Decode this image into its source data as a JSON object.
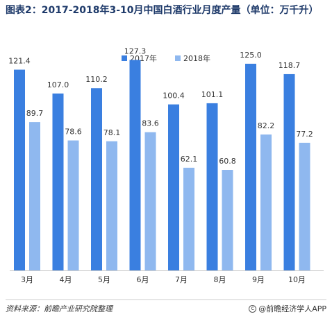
{
  "title": "图表2：2017-2018年3-10月中国白酒行业月度产量（单位：万千升）",
  "footer": {
    "source": "资料来源：前瞻产业研究院整理",
    "brand": "@前瞻经济学人APP",
    "brand_icon": "copyright-circle-icon"
  },
  "colors": {
    "series_2017": "#3a7fe0",
    "series_2018": "#8fb8ef"
  },
  "chart_data": {
    "type": "bar",
    "title": "2017-2018年3-10月中国白酒行业月度产量（单位：万千升）",
    "categories": [
      "3月",
      "4月",
      "5月",
      "6月",
      "7月",
      "8月",
      "9月",
      "10月"
    ],
    "series": [
      {
        "name": "2017年",
        "values": [
          121.4,
          107.0,
          110.2,
          127.3,
          100.4,
          101.1,
          125.0,
          118.7
        ]
      },
      {
        "name": "2018年",
        "values": [
          89.7,
          78.6,
          78.1,
          83.6,
          62.1,
          60.8,
          82.2,
          77.2
        ]
      }
    ],
    "value_labels_2017": [
      "121.4",
      "107.0",
      "110.2",
      "127.3",
      "100.4",
      "101.1",
      "125.0",
      "118.7"
    ],
    "value_labels_2018": [
      "89.7",
      "78.6",
      "78.1",
      "83.6",
      "62.1",
      "60.8",
      "82.2",
      "77.2"
    ],
    "xlabel": "",
    "ylabel": "",
    "ylim": [
      0,
      130
    ],
    "grid": false,
    "legend": "top-center"
  }
}
